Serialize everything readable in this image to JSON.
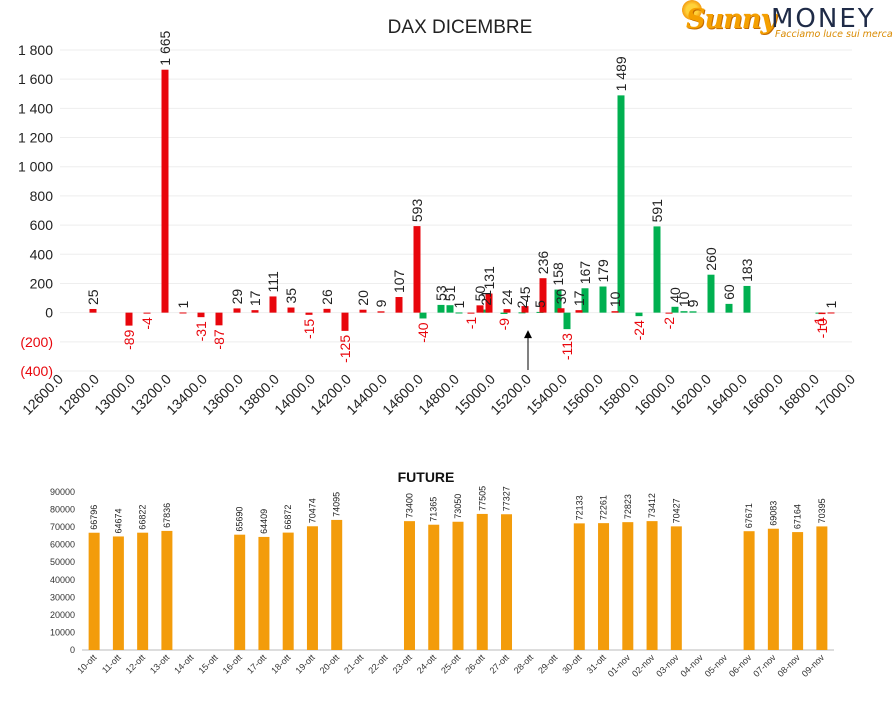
{
  "logo": {
    "brand_word1": "Sunny",
    "brand_word2": "MONEY",
    "tagline": "Facciamo luce sui mercati"
  },
  "colors": {
    "positive": "#00b050",
    "negative": "#e8060c",
    "future_bar": "#f39c0b",
    "negative_label": "#e8060c",
    "label": "#222222"
  },
  "chart_data": [
    {
      "type": "bar",
      "title": "DAX DICEMBRE",
      "ylim": [
        -400,
        1800
      ],
      "yticks": [
        1800,
        1600,
        1400,
        1200,
        1000,
        800,
        600,
        400,
        200,
        0,
        -200,
        -400
      ],
      "ytick_labels": [
        "1 800",
        "1 600",
        "1 400",
        "1 200",
        "1 000",
        "800",
        "600",
        "400",
        "200",
        "0",
        "(200)",
        "(400)"
      ],
      "x_tick_labels": [
        "12600.0",
        "12800.0",
        "13000.0",
        "13200.0",
        "13400.0",
        "13600.0",
        "13800.0",
        "14000.0",
        "14200.0",
        "14400.0",
        "14600.0",
        "14800.0",
        "15000.0",
        "15200.0",
        "15400.0",
        "15600.0",
        "15800.0",
        "16000.0",
        "16200.0",
        "16400.0",
        "16600.0",
        "16800.0",
        "17000.0"
      ],
      "xlim": [
        12600,
        17000
      ],
      "annotations": [
        {
          "type": "arrow",
          "x": 15200,
          "from": -400,
          "to": -120
        }
      ],
      "series": [
        {
          "name": "Call",
          "color": "positive",
          "points": [
            {
              "x": 14600,
              "v": -40
            },
            {
              "x": 14700,
              "v": 53
            },
            {
              "x": 14750,
              "v": 51
            },
            {
              "x": 14800,
              "v": 1
            },
            {
              "x": 14950,
              "v": 21
            },
            {
              "x": 15050,
              "v": -9
            },
            {
              "x": 15150,
              "v": 2
            },
            {
              "x": 15250,
              "v": 5
            },
            {
              "x": 15350,
              "v": 158
            },
            {
              "x": 15400,
              "v": -113
            },
            {
              "x": 15500,
              "v": 167
            },
            {
              "x": 15600,
              "v": 179
            },
            {
              "x": 15700,
              "v": 1489
            },
            {
              "x": 15800,
              "v": -24
            },
            {
              "x": 15900,
              "v": 591
            },
            {
              "x": 16000,
              "v": 40
            },
            {
              "x": 16050,
              "v": 10
            },
            {
              "x": 16100,
              "v": 9
            },
            {
              "x": 16200,
              "v": 260
            },
            {
              "x": 16300,
              "v": 60
            },
            {
              "x": 16400,
              "v": 183
            },
            {
              "x": 16800,
              "v": -1
            }
          ]
        },
        {
          "name": "Put",
          "color": "negative",
          "points": [
            {
              "x": 12800,
              "v": 25
            },
            {
              "x": 13000,
              "v": -89
            },
            {
              "x": 13100,
              "v": -4
            },
            {
              "x": 13200,
              "v": 1665
            },
            {
              "x": 13300,
              "v": 1
            },
            {
              "x": 13400,
              "v": -31
            },
            {
              "x": 13500,
              "v": -87
            },
            {
              "x": 13600,
              "v": 29
            },
            {
              "x": 13700,
              "v": 17
            },
            {
              "x": 13800,
              "v": 111
            },
            {
              "x": 13900,
              "v": 35
            },
            {
              "x": 14000,
              "v": -15
            },
            {
              "x": 14100,
              "v": 26
            },
            {
              "x": 14200,
              "v": -125
            },
            {
              "x": 14300,
              "v": 20
            },
            {
              "x": 14400,
              "v": 9
            },
            {
              "x": 14500,
              "v": 107
            },
            {
              "x": 14600,
              "v": 593
            },
            {
              "x": 14900,
              "v": -1
            },
            {
              "x": 14950,
              "v": 50
            },
            {
              "x": 15000,
              "v": 131
            },
            {
              "x": 15100,
              "v": 24
            },
            {
              "x": 15200,
              "v": 45
            },
            {
              "x": 15300,
              "v": 236
            },
            {
              "x": 15400,
              "v": 30
            },
            {
              "x": 15500,
              "v": 17
            },
            {
              "x": 15700,
              "v": 10
            },
            {
              "x": 16000,
              "v": -2
            },
            {
              "x": 16850,
              "v": -10
            },
            {
              "x": 16900,
              "v": 1
            }
          ]
        }
      ]
    },
    {
      "type": "bar",
      "title": "FUTURE",
      "ylim": [
        0,
        90000
      ],
      "yticks": [
        90000,
        80000,
        70000,
        60000,
        50000,
        40000,
        30000,
        20000,
        10000,
        0
      ],
      "categories": [
        "10-ott",
        "11-ott",
        "12-ott",
        "13-ott",
        "14-ott",
        "15-ott",
        "16-ott",
        "17-ott",
        "18-ott",
        "19-ott",
        "20-ott",
        "21-ott",
        "22-ott",
        "23-ott",
        "24-ott",
        "25-ott",
        "26-ott",
        "27-ott",
        "28-ott",
        "29-ott",
        "30-ott",
        "31-ott",
        "01-nov",
        "02-nov",
        "03-nov",
        "04-nov",
        "05-nov",
        "06-nov",
        "07-nov",
        "08-nov",
        "09-nov"
      ],
      "values": [
        66796,
        64674,
        66822,
        67836,
        null,
        null,
        65690,
        64409,
        66872,
        70474,
        74095,
        null,
        null,
        73400,
        71365,
        73050,
        77505,
        77327,
        null,
        null,
        72133,
        72261,
        72823,
        73412,
        70427,
        null,
        null,
        67671,
        69083,
        67164,
        70395
      ]
    }
  ]
}
